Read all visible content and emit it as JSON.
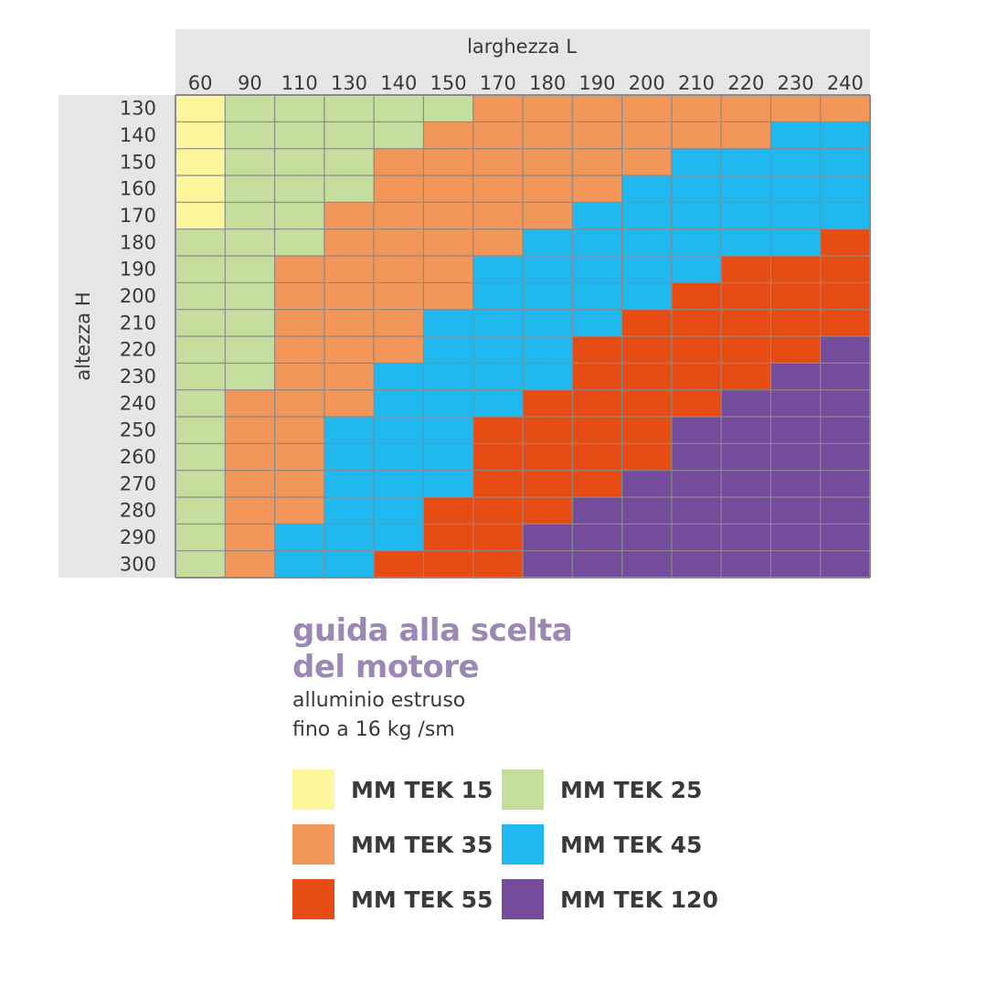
{
  "chart_data": {
    "type": "heatmap",
    "xlabel": "larghezza L",
    "ylabel": "altezza H",
    "x": [
      "60",
      "90",
      "110",
      "130",
      "140",
      "150",
      "170",
      "180",
      "190",
      "200",
      "210",
      "220",
      "230",
      "240"
    ],
    "y": [
      "130",
      "140",
      "150",
      "160",
      "170",
      "180",
      "190",
      "200",
      "210",
      "220",
      "230",
      "240",
      "250",
      "260",
      "270",
      "280",
      "290",
      "300"
    ],
    "grid": true,
    "values": [
      [
        "MM TEK 15",
        "MM TEK 25",
        "MM TEK 25",
        "MM TEK 25",
        "MM TEK 25",
        "MM TEK 25",
        "MM TEK 35",
        "MM TEK 35",
        "MM TEK 35",
        "MM TEK 35",
        "MM TEK 35",
        "MM TEK 35",
        "MM TEK 35",
        "MM TEK 35"
      ],
      [
        "MM TEK 15",
        "MM TEK 25",
        "MM TEK 25",
        "MM TEK 25",
        "MM TEK 25",
        "MM TEK 35",
        "MM TEK 35",
        "MM TEK 35",
        "MM TEK 35",
        "MM TEK 35",
        "MM TEK 35",
        "MM TEK 35",
        "MM TEK 45",
        "MM TEK 45"
      ],
      [
        "MM TEK 15",
        "MM TEK 25",
        "MM TEK 25",
        "MM TEK 25",
        "MM TEK 35",
        "MM TEK 35",
        "MM TEK 35",
        "MM TEK 35",
        "MM TEK 35",
        "MM TEK 35",
        "MM TEK 45",
        "MM TEK 45",
        "MM TEK 45",
        "MM TEK 45"
      ],
      [
        "MM TEK 15",
        "MM TEK 25",
        "MM TEK 25",
        "MM TEK 25",
        "MM TEK 35",
        "MM TEK 35",
        "MM TEK 35",
        "MM TEK 35",
        "MM TEK 35",
        "MM TEK 45",
        "MM TEK 45",
        "MM TEK 45",
        "MM TEK 45",
        "MM TEK 45"
      ],
      [
        "MM TEK 15",
        "MM TEK 25",
        "MM TEK 25",
        "MM TEK 35",
        "MM TEK 35",
        "MM TEK 35",
        "MM TEK 35",
        "MM TEK 35",
        "MM TEK 45",
        "MM TEK 45",
        "MM TEK 45",
        "MM TEK 45",
        "MM TEK 45",
        "MM TEK 45"
      ],
      [
        "MM TEK 25",
        "MM TEK 25",
        "MM TEK 25",
        "MM TEK 35",
        "MM TEK 35",
        "MM TEK 35",
        "MM TEK 35",
        "MM TEK 45",
        "MM TEK 45",
        "MM TEK 45",
        "MM TEK 45",
        "MM TEK 45",
        "MM TEK 45",
        "MM TEK 55"
      ],
      [
        "MM TEK 25",
        "MM TEK 25",
        "MM TEK 35",
        "MM TEK 35",
        "MM TEK 35",
        "MM TEK 35",
        "MM TEK 45",
        "MM TEK 45",
        "MM TEK 45",
        "MM TEK 45",
        "MM TEK 45",
        "MM TEK 55",
        "MM TEK 55",
        "MM TEK 55"
      ],
      [
        "MM TEK 25",
        "MM TEK 25",
        "MM TEK 35",
        "MM TEK 35",
        "MM TEK 35",
        "MM TEK 35",
        "MM TEK 45",
        "MM TEK 45",
        "MM TEK 45",
        "MM TEK 45",
        "MM TEK 55",
        "MM TEK 55",
        "MM TEK 55",
        "MM TEK 55"
      ],
      [
        "MM TEK 25",
        "MM TEK 25",
        "MM TEK 35",
        "MM TEK 35",
        "MM TEK 35",
        "MM TEK 45",
        "MM TEK 45",
        "MM TEK 45",
        "MM TEK 45",
        "MM TEK 55",
        "MM TEK 55",
        "MM TEK 55",
        "MM TEK 55",
        "MM TEK 55"
      ],
      [
        "MM TEK 25",
        "MM TEK 25",
        "MM TEK 35",
        "MM TEK 35",
        "MM TEK 35",
        "MM TEK 45",
        "MM TEK 45",
        "MM TEK 45",
        "MM TEK 55",
        "MM TEK 55",
        "MM TEK 55",
        "MM TEK 55",
        "MM TEK 55",
        "MM TEK 120"
      ],
      [
        "MM TEK 25",
        "MM TEK 25",
        "MM TEK 35",
        "MM TEK 35",
        "MM TEK 45",
        "MM TEK 45",
        "MM TEK 45",
        "MM TEK 45",
        "MM TEK 55",
        "MM TEK 55",
        "MM TEK 55",
        "MM TEK 55",
        "MM TEK 120",
        "MM TEK 120"
      ],
      [
        "MM TEK 25",
        "MM TEK 35",
        "MM TEK 35",
        "MM TEK 35",
        "MM TEK 45",
        "MM TEK 45",
        "MM TEK 45",
        "MM TEK 55",
        "MM TEK 55",
        "MM TEK 55",
        "MM TEK 55",
        "MM TEK 120",
        "MM TEK 120",
        "MM TEK 120"
      ],
      [
        "MM TEK 25",
        "MM TEK 35",
        "MM TEK 35",
        "MM TEK 45",
        "MM TEK 45",
        "MM TEK 45",
        "MM TEK 55",
        "MM TEK 55",
        "MM TEK 55",
        "MM TEK 55",
        "MM TEK 120",
        "MM TEK 120",
        "MM TEK 120",
        "MM TEK 120"
      ],
      [
        "MM TEK 25",
        "MM TEK 35",
        "MM TEK 35",
        "MM TEK 45",
        "MM TEK 45",
        "MM TEK 45",
        "MM TEK 55",
        "MM TEK 55",
        "MM TEK 55",
        "MM TEK 55",
        "MM TEK 120",
        "MM TEK 120",
        "MM TEK 120",
        "MM TEK 120"
      ],
      [
        "MM TEK 25",
        "MM TEK 35",
        "MM TEK 35",
        "MM TEK 45",
        "MM TEK 45",
        "MM TEK 45",
        "MM TEK 55",
        "MM TEK 55",
        "MM TEK 55",
        "MM TEK 120",
        "MM TEK 120",
        "MM TEK 120",
        "MM TEK 120",
        "MM TEK 120"
      ],
      [
        "MM TEK 25",
        "MM TEK 35",
        "MM TEK 35",
        "MM TEK 45",
        "MM TEK 45",
        "MM TEK 55",
        "MM TEK 55",
        "MM TEK 55",
        "MM TEK 120",
        "MM TEK 120",
        "MM TEK 120",
        "MM TEK 120",
        "MM TEK 120",
        "MM TEK 120"
      ],
      [
        "MM TEK 25",
        "MM TEK 35",
        "MM TEK 45",
        "MM TEK 45",
        "MM TEK 45",
        "MM TEK 55",
        "MM TEK 55",
        "MM TEK 120",
        "MM TEK 120",
        "MM TEK 120",
        "MM TEK 120",
        "MM TEK 120",
        "MM TEK 120",
        "MM TEK 120"
      ],
      [
        "MM TEK 25",
        "MM TEK 35",
        "MM TEK 45",
        "MM TEK 45",
        "MM TEK 55",
        "MM TEK 55",
        "MM TEK 55",
        "MM TEK 120",
        "MM TEK 120",
        "MM TEK 120",
        "MM TEK 120",
        "MM TEK 120",
        "MM TEK 120",
        "MM TEK 120"
      ]
    ],
    "legend": [
      {
        "label": "MM TEK 15",
        "color": "#fdf69c"
      },
      {
        "label": "MM TEK 25",
        "color": "#c5de9e"
      },
      {
        "label": "MM TEK 35",
        "color": "#f29659"
      },
      {
        "label": "MM TEK 45",
        "color": "#1fb9ef"
      },
      {
        "label": "MM TEK 55",
        "color": "#e64c14"
      },
      {
        "label": "MM TEK 120",
        "color": "#754b9b"
      }
    ],
    "legend_placement": "bottom"
  },
  "title": {
    "line1": "guida alla scelta",
    "line2": "del motore"
  },
  "subtitle": {
    "line1": "alluminio estruso",
    "line2": "fino a 16 kg /sm"
  },
  "colors": {
    "title": "#9b88b3",
    "axis_band": "#e6e6e6",
    "grid": "#8a8a8a",
    "text": "#3a3a3a"
  }
}
